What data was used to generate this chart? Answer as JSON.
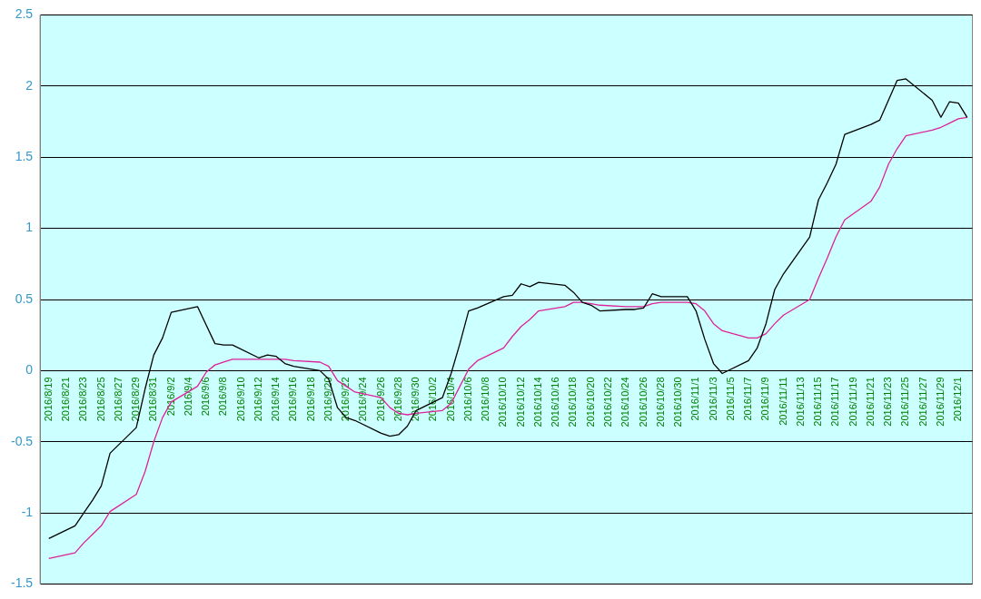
{
  "chart_data": {
    "type": "line",
    "categories": [
      "2016/8/19",
      null,
      "2016/8/21",
      null,
      "2016/8/23",
      null,
      "2016/8/25",
      null,
      "2016/8/27",
      null,
      "2016/8/29",
      null,
      "2016/8/31",
      null,
      "2016/9/2",
      null,
      "2016/9/4",
      null,
      "2016/9/6",
      null,
      "2016/9/8",
      null,
      "2016/9/10",
      null,
      "2016/9/12",
      null,
      "2016/9/14",
      null,
      "2016/9/16",
      null,
      "2016/9/18",
      null,
      "2016/9/20",
      null,
      "2016/9/22",
      null,
      "2016/9/24",
      null,
      "2016/9/26",
      null,
      "2016/9/28",
      null,
      "2016/9/30",
      null,
      "2016/10/2",
      null,
      "2016/10/4",
      null,
      "2016/10/6",
      null,
      "2016/10/8",
      null,
      "2016/10/10",
      null,
      "2016/10/12",
      null,
      "2016/10/14",
      null,
      "2016/10/16",
      null,
      "2016/10/18",
      null,
      "2016/10/20",
      null,
      "2016/10/22",
      null,
      "2016/10/24",
      null,
      "2016/10/26",
      null,
      "2016/10/28",
      null,
      "2016/10/30",
      null,
      "2016/11/1",
      null,
      "2016/11/3",
      null,
      "2016/11/5",
      null,
      "2016/11/7",
      null,
      "2016/11/9",
      null,
      "2016/11/11",
      null,
      "2016/11/13",
      null,
      "2016/11/15",
      null,
      "2016/11/17",
      null,
      "2016/11/19",
      null,
      "2016/11/21",
      null,
      "2016/11/23",
      null,
      "2016/11/25",
      null,
      "2016/11/27",
      null,
      "2016/11/29",
      null,
      "2016/12/1",
      null
    ],
    "series": [
      {
        "color": "#000000",
        "values": [
          -1.18,
          null,
          null,
          -1.09,
          -1.0,
          -0.91,
          -0.81,
          -0.58,
          null,
          null,
          -0.4,
          -0.13,
          0.11,
          0.23,
          0.41,
          null,
          null,
          0.45,
          0.32,
          0.19,
          0.18,
          0.18,
          null,
          null,
          0.09,
          0.11,
          0.1,
          0.05,
          0.03,
          null,
          null,
          0.0,
          -0.06,
          -0.26,
          -0.33,
          -0.35,
          null,
          null,
          -0.44,
          -0.46,
          -0.45,
          -0.39,
          -0.28,
          null,
          null,
          -0.19,
          -0.02,
          0.19,
          0.42,
          0.44,
          null,
          null,
          0.52,
          0.53,
          0.61,
          0.59,
          0.62,
          null,
          null,
          0.6,
          0.55,
          0.48,
          0.46,
          0.42,
          null,
          null,
          0.43,
          0.43,
          0.44,
          0.54,
          0.52,
          null,
          null,
          0.52,
          0.42,
          0.22,
          0.05,
          -0.02,
          null,
          null,
          0.07,
          0.16,
          0.33,
          0.57,
          0.68,
          null,
          null,
          0.94,
          1.2,
          1.32,
          1.45,
          1.66,
          null,
          null,
          1.73,
          1.76,
          1.9,
          2.04,
          2.05,
          null,
          null,
          1.9,
          1.78,
          1.89,
          1.88,
          1.78
        ]
      },
      {
        "color": "#dd2299",
        "values": [
          -1.32,
          null,
          null,
          -1.28,
          -1.21,
          -1.15,
          -1.09,
          -0.99,
          null,
          null,
          -0.87,
          -0.71,
          -0.5,
          -0.33,
          -0.22,
          null,
          null,
          -0.11,
          -0.01,
          0.04,
          0.06,
          0.08,
          null,
          null,
          0.08,
          0.08,
          0.08,
          0.08,
          0.07,
          null,
          null,
          0.06,
          0.03,
          -0.07,
          -0.11,
          -0.15,
          null,
          null,
          -0.19,
          -0.26,
          -0.3,
          -0.31,
          -0.3,
          null,
          null,
          -0.28,
          -0.23,
          -0.11,
          0.01,
          0.07,
          null,
          null,
          0.16,
          0.24,
          0.31,
          0.36,
          0.42,
          null,
          null,
          0.45,
          0.48,
          0.48,
          0.47,
          0.46,
          null,
          null,
          0.45,
          0.45,
          0.45,
          0.47,
          0.48,
          null,
          null,
          0.48,
          0.47,
          0.42,
          0.33,
          0.28,
          null,
          null,
          0.23,
          0.23,
          0.26,
          0.33,
          0.39,
          null,
          null,
          0.5,
          0.65,
          0.79,
          0.94,
          1.06,
          null,
          null,
          1.19,
          1.29,
          1.45,
          1.56,
          1.65,
          null,
          null,
          1.69,
          1.71,
          1.74,
          1.77,
          1.78
        ]
      }
    ],
    "ylim": [
      -1.5,
      2.5
    ],
    "yticks": [
      -1.5,
      -1,
      -0.5,
      0,
      0.5,
      1,
      1.5,
      2,
      2.5
    ],
    "grid": "y",
    "legend": false,
    "marker": "none",
    "line_style": "solid"
  }
}
